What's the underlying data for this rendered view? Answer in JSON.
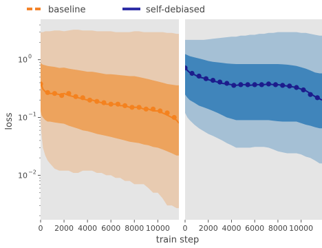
{
  "legend": {
    "placement": "top-left",
    "items": [
      {
        "label": "baseline",
        "color": "#f4832a",
        "style": "dashed"
      },
      {
        "label": "self-debiased",
        "color": "#2e2ea6",
        "style": "solid"
      }
    ]
  },
  "axes": {
    "xlabel": "train step",
    "ylabel": "loss",
    "x_ticks": [
      0,
      2000,
      4000,
      6000,
      8000,
      10000
    ],
    "x_tick_labels": [
      "0",
      "2000",
      "4000",
      "6000",
      "8000",
      "10000"
    ],
    "y_ticks": [
      0.01,
      0.1,
      1
    ],
    "y_tick_labels": [
      "10",
      "10",
      "10"
    ],
    "y_tick_exponents": [
      "−2",
      "−1",
      "0"
    ]
  },
  "chart_data": {
    "type": "line",
    "yscale": "log",
    "xlim": [
      0,
      11800
    ],
    "ylim": [
      0.0017,
      5
    ],
    "xlabel": "train step",
    "ylabel": "loss",
    "grid": false,
    "legend_placement": "top-left",
    "panels": [
      {
        "series": [
          {
            "name": "baseline",
            "color": "#f4821f",
            "band_color": "#ed9c4f",
            "line_x": [
              0,
              80,
              200,
              400,
              600,
              800,
              1200,
              1600,
              2000,
              2400,
              2800,
              3200,
              3600,
              4000,
              4400,
              4800,
              5200,
              5600,
              6000,
              6400,
              6800,
              7200,
              7600,
              8000,
              8400,
              8800,
              9200,
              9600,
              10000,
              10400,
              10800,
              11200,
              11600,
              11800
            ],
            "line_y": [
              0.42,
              0.36,
              0.31,
              0.28,
              0.27,
              0.26,
              0.26,
              0.25,
              0.26,
              0.24,
              0.23,
              0.22,
              0.21,
              0.2,
              0.2,
              0.19,
              0.18,
              0.17,
              0.17,
              0.17,
              0.16,
              0.16,
              0.15,
              0.15,
              0.15,
              0.14,
              0.14,
              0.13,
              0.13,
              0.12,
              0.11,
              0.1,
              0.09,
              0.08
            ],
            "marker_x": [
              0,
              600,
              1200,
              1800,
              2400,
              3000,
              3600,
              4200,
              4800,
              5400,
              6000,
              6600,
              7200,
              7800,
              8400,
              9000,
              9600,
              10200,
              10800,
              11400
            ],
            "marker_y": [
              0.38,
              0.27,
              0.26,
              0.24,
              0.26,
              0.23,
              0.22,
              0.2,
              0.19,
              0.18,
              0.17,
              0.17,
              0.16,
              0.15,
              0.15,
              0.14,
              0.14,
              0.13,
              0.12,
              0.1
            ],
            "band_inner_lower": [
              0.13,
              0.11,
              0.1,
              0.09,
              0.085,
              0.085,
              0.082,
              0.08,
              0.078,
              0.072,
              0.068,
              0.064,
              0.06,
              0.058,
              0.055,
              0.052,
              0.05,
              0.048,
              0.046,
              0.044,
              0.042,
              0.04,
              0.038,
              0.037,
              0.036,
              0.034,
              0.033,
              0.031,
              0.03,
              0.028,
              0.026,
              0.024,
              0.022,
              0.022
            ],
            "band_inner_upper": [
              0.9,
              0.85,
              0.82,
              0.8,
              0.78,
              0.77,
              0.75,
              0.72,
              0.73,
              0.7,
              0.68,
              0.66,
              0.64,
              0.62,
              0.62,
              0.6,
              0.58,
              0.56,
              0.56,
              0.55,
              0.54,
              0.53,
              0.52,
              0.52,
              0.5,
              0.48,
              0.46,
              0.44,
              0.42,
              0.4,
              0.38,
              0.37,
              0.36,
              0.36
            ],
            "band_outer_lower": [
              0.09,
              0.05,
              0.03,
              0.022,
              0.018,
              0.016,
              0.013,
              0.012,
              0.012,
              0.012,
              0.011,
              0.011,
              0.012,
              0.012,
              0.012,
              0.011,
              0.011,
              0.01,
              0.01,
              0.009,
              0.009,
              0.008,
              0.008,
              0.007,
              0.007,
              0.007,
              0.006,
              0.005,
              0.005,
              0.004,
              0.003,
              0.003,
              0.0027,
              0.0027
            ],
            "band_outer_upper": [
              3.0,
              3.0,
              3.0,
              3.1,
              3.1,
              3.1,
              3.2,
              3.2,
              3.1,
              3.2,
              3.3,
              3.3,
              3.2,
              3.2,
              3.2,
              3.1,
              3.1,
              3.1,
              3.1,
              3.0,
              3.0,
              3.0,
              3.0,
              3.1,
              3.1,
              3.0,
              3.0,
              3.0,
              3.0,
              3.0,
              2.9,
              2.9,
              2.8,
              2.8
            ]
          }
        ]
      },
      {
        "series": [
          {
            "name": "self-debiased",
            "color": "#1c1c8c",
            "band_color": "#2e7ab6",
            "line_x": [
              0,
              200,
              400,
              800,
              1200,
              1600,
              2000,
              2400,
              2800,
              3200,
              3600,
              4000,
              4400,
              4800,
              5200,
              5600,
              6000,
              6400,
              6800,
              7200,
              7600,
              8000,
              8400,
              8800,
              9200,
              9600,
              10000,
              10400,
              10800,
              11200,
              11600,
              11800
            ],
            "line_y": [
              0.75,
              0.65,
              0.6,
              0.55,
              0.5,
              0.48,
              0.45,
              0.43,
              0.41,
              0.39,
              0.38,
              0.37,
              0.36,
              0.37,
              0.37,
              0.36,
              0.37,
              0.37,
              0.37,
              0.38,
              0.37,
              0.37,
              0.36,
              0.35,
              0.34,
              0.33,
              0.31,
              0.29,
              0.26,
              0.23,
              0.21,
              0.2
            ],
            "marker_x": [
              0,
              600,
              1200,
              1800,
              2400,
              3000,
              3600,
              4200,
              4800,
              5400,
              6000,
              6600,
              7200,
              7800,
              8400,
              9000,
              9600,
              10200,
              10800,
              11400
            ],
            "marker_y": [
              0.72,
              0.58,
              0.52,
              0.47,
              0.44,
              0.41,
              0.39,
              0.36,
              0.37,
              0.37,
              0.37,
              0.37,
              0.38,
              0.37,
              0.36,
              0.35,
              0.33,
              0.3,
              0.25,
              0.22
            ],
            "band_inner_lower": [
              0.25,
              0.22,
              0.2,
              0.18,
              0.16,
              0.15,
              0.14,
              0.13,
              0.12,
              0.11,
              0.1,
              0.095,
              0.09,
              0.09,
              0.09,
              0.09,
              0.09,
              0.09,
              0.09,
              0.09,
              0.088,
              0.086,
              0.085,
              0.085,
              0.085,
              0.085,
              0.08,
              0.075,
              0.072,
              0.068,
              0.065,
              0.065
            ],
            "band_inner_upper": [
              1.25,
              1.2,
              1.15,
              1.1,
              1.05,
              1.0,
              0.95,
              0.92,
              0.9,
              0.88,
              0.86,
              0.85,
              0.84,
              0.84,
              0.84,
              0.84,
              0.84,
              0.84,
              0.84,
              0.84,
              0.84,
              0.84,
              0.83,
              0.82,
              0.8,
              0.78,
              0.74,
              0.7,
              0.65,
              0.6,
              0.58,
              0.58
            ],
            "band_outer_lower": [
              0.12,
              0.1,
              0.09,
              0.075,
              0.065,
              0.058,
              0.052,
              0.048,
              0.044,
              0.04,
              0.036,
              0.033,
              0.03,
              0.03,
              0.03,
              0.03,
              0.031,
              0.031,
              0.031,
              0.03,
              0.028,
              0.026,
              0.025,
              0.024,
              0.024,
              0.024,
              0.023,
              0.021,
              0.02,
              0.018,
              0.016,
              0.016
            ],
            "band_outer_upper": [
              2.2,
              2.2,
              2.2,
              2.2,
              2.2,
              2.2,
              2.25,
              2.3,
              2.35,
              2.4,
              2.45,
              2.5,
              2.5,
              2.6,
              2.6,
              2.7,
              2.7,
              2.8,
              2.8,
              2.9,
              2.9,
              3.0,
              3.0,
              3.0,
              3.0,
              3.0,
              2.9,
              2.9,
              2.8,
              2.7,
              2.6,
              2.6
            ]
          }
        ]
      }
    ]
  }
}
